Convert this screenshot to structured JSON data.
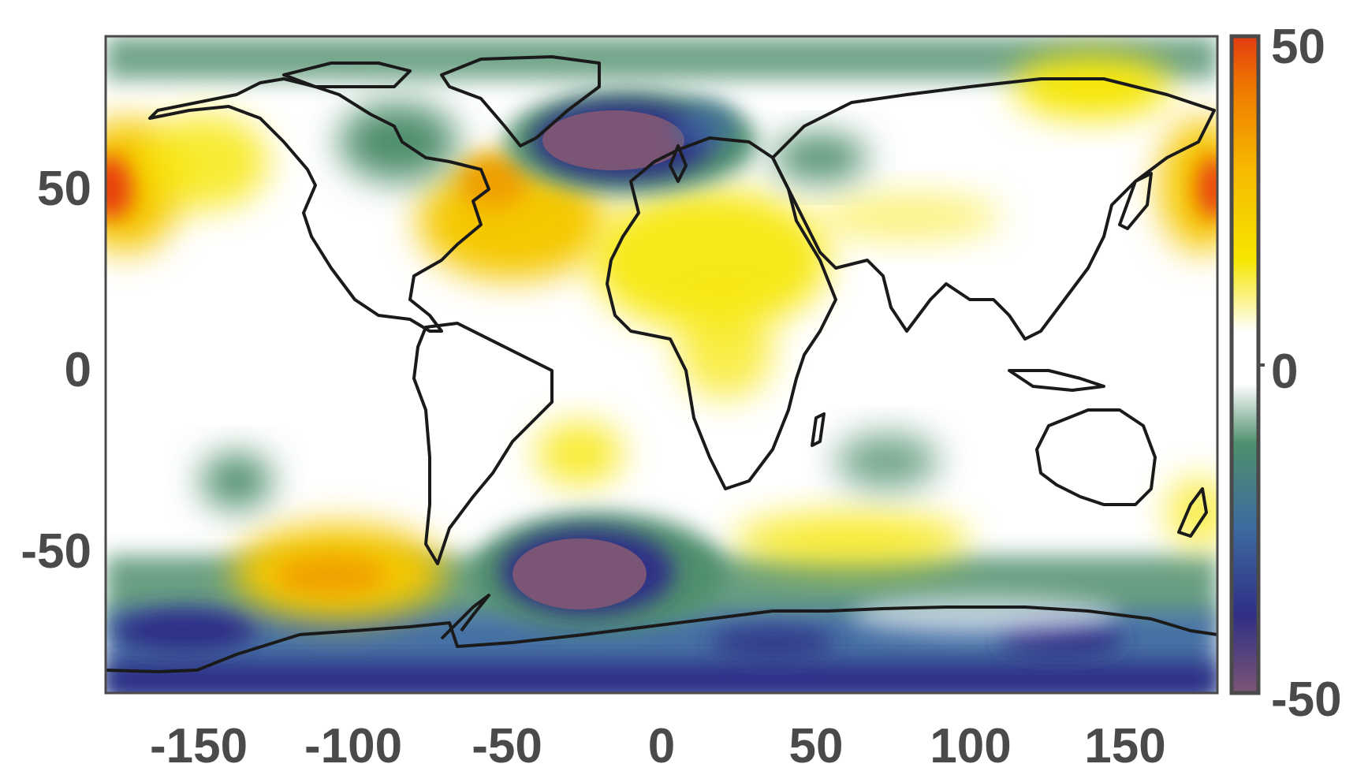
{
  "map": {
    "x_ticks": [
      "-150",
      "-100",
      "-50",
      "0",
      "50",
      "100",
      "150"
    ],
    "y_ticks": [
      "50",
      "0",
      "-50"
    ],
    "colorbar": {
      "max_label": "50",
      "mid_label": "0",
      "min_label": "-50",
      "colors": [
        "#7b5575",
        "#2f2f86",
        "#3d6aa0",
        "#4f8f6d",
        "#ffffff",
        "#ffffff",
        "#f7e600",
        "#f6b800",
        "#ef7a00",
        "#e33b10"
      ]
    },
    "field": {
      "positive_color": "#f5c800",
      "strong_positive_color": "#e84010",
      "negative_color": "#4f8f6d",
      "strong_negative_color": "#7b5575",
      "deep_negative_color": "#2f2f86"
    }
  }
}
